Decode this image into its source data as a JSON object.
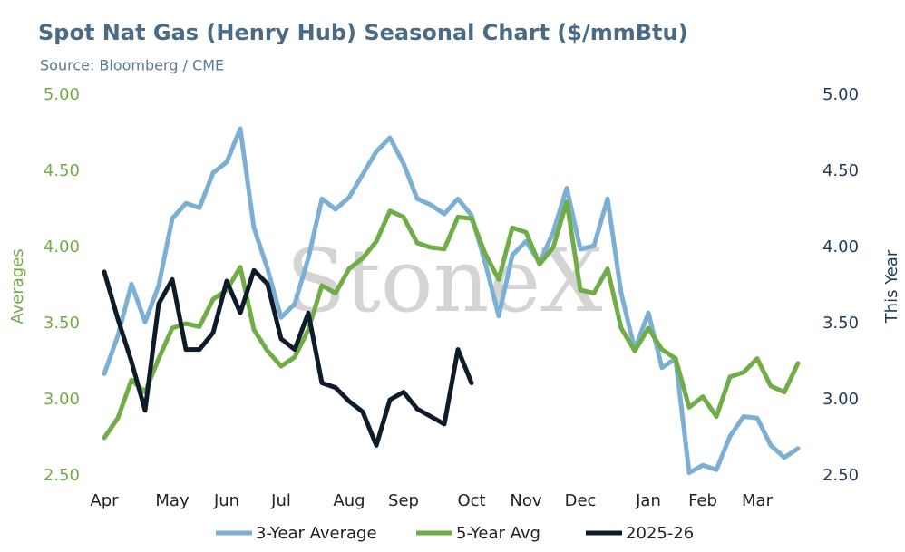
{
  "chart_data": {
    "type": "line",
    "title": "Spot Nat Gas (Henry Hub) Seasonal Chart ($/mmBtu)",
    "subtitle": "Source: Bloomberg / CME",
    "watermark": "StoneX",
    "ylabel": "Averages",
    "y2label": "This Year",
    "categories": [
      "Apr",
      null,
      null,
      null,
      null,
      "May",
      null,
      null,
      null,
      "Jun",
      null,
      null,
      null,
      "Jul",
      null,
      null,
      null,
      null,
      "Aug",
      null,
      null,
      null,
      "Sep",
      null,
      null,
      null,
      null,
      "Oct",
      null,
      null,
      null,
      "Nov",
      null,
      null,
      null,
      "Dec",
      null,
      null,
      null,
      null,
      "Jan",
      null,
      null,
      null,
      "Feb",
      null,
      null,
      null,
      "Mar",
      null,
      null,
      null
    ],
    "ylim": [
      2.5,
      5.0
    ],
    "yticks": [
      {
        "value": 2.5,
        "label": "2.50"
      },
      {
        "value": 3.0,
        "label": "3.00"
      },
      {
        "value": 3.5,
        "label": "3.50"
      },
      {
        "value": 4.0,
        "label": "4.00"
      },
      {
        "value": 4.5,
        "label": "4.50"
      },
      {
        "value": 5.0,
        "label": "5.00"
      }
    ],
    "y2lim": [
      2.5,
      5.0
    ],
    "y2ticks": [
      {
        "value": 2.5,
        "label": "2.50"
      },
      {
        "value": 3.0,
        "label": "3.00"
      },
      {
        "value": 3.5,
        "label": "3.50"
      },
      {
        "value": 4.0,
        "label": "4.00"
      },
      {
        "value": 4.5,
        "label": "4.50"
      },
      {
        "value": 5.0,
        "label": "5.00"
      }
    ],
    "ylabel_color": "#70ad47",
    "y2label_color": "#1f3b57",
    "grid": false,
    "legend": "bottom",
    "series": [
      {
        "name": "3-Year Average",
        "color": "#7bafd4",
        "values": [
          3.17,
          3.42,
          3.76,
          3.51,
          3.75,
          4.19,
          4.29,
          4.26,
          4.49,
          4.56,
          4.78,
          4.13,
          3.86,
          3.54,
          3.63,
          3.93,
          4.32,
          4.25,
          4.33,
          4.48,
          4.63,
          4.72,
          4.55,
          4.32,
          4.28,
          4.22,
          4.32,
          4.21,
          3.9,
          3.55,
          3.95,
          4.04,
          3.9,
          4.1,
          4.39,
          3.99,
          4.01,
          4.32,
          3.7,
          3.33,
          3.57,
          3.21,
          3.27,
          2.52,
          2.57,
          2.54,
          2.76,
          2.89,
          2.88,
          2.7,
          2.62,
          2.68
        ]
      },
      {
        "name": "5-Year Avg",
        "color": "#70ad47",
        "values": [
          2.75,
          2.88,
          3.13,
          3.05,
          3.27,
          3.47,
          3.5,
          3.48,
          3.66,
          3.72,
          3.87,
          3.46,
          3.32,
          3.22,
          3.28,
          3.46,
          3.75,
          3.7,
          3.86,
          3.93,
          4.04,
          4.24,
          4.2,
          4.03,
          4.0,
          3.99,
          4.2,
          4.19,
          3.96,
          3.79,
          4.13,
          4.1,
          3.89,
          4.0,
          4.3,
          3.72,
          3.7,
          3.86,
          3.47,
          3.32,
          3.47,
          3.33,
          3.27,
          2.95,
          3.02,
          2.89,
          3.15,
          3.18,
          3.27,
          3.09,
          3.05,
          3.24
        ]
      },
      {
        "name": "2025-26",
        "color": "#0d1b2a",
        "axis": "y2",
        "values": [
          3.84,
          3.53,
          3.25,
          2.93,
          3.63,
          3.79,
          3.33,
          3.33,
          3.44,
          3.78,
          3.57,
          3.85,
          3.76,
          3.4,
          3.33,
          3.57,
          3.11,
          3.08,
          2.99,
          2.92,
          2.7,
          3.0,
          3.05,
          2.94,
          2.89,
          2.84,
          3.33,
          3.11,
          null,
          null,
          null,
          null,
          null,
          null,
          null,
          null,
          null,
          null,
          null,
          null,
          null,
          null,
          null,
          null,
          null,
          null,
          null,
          null,
          null,
          null,
          null,
          null
        ]
      }
    ]
  }
}
